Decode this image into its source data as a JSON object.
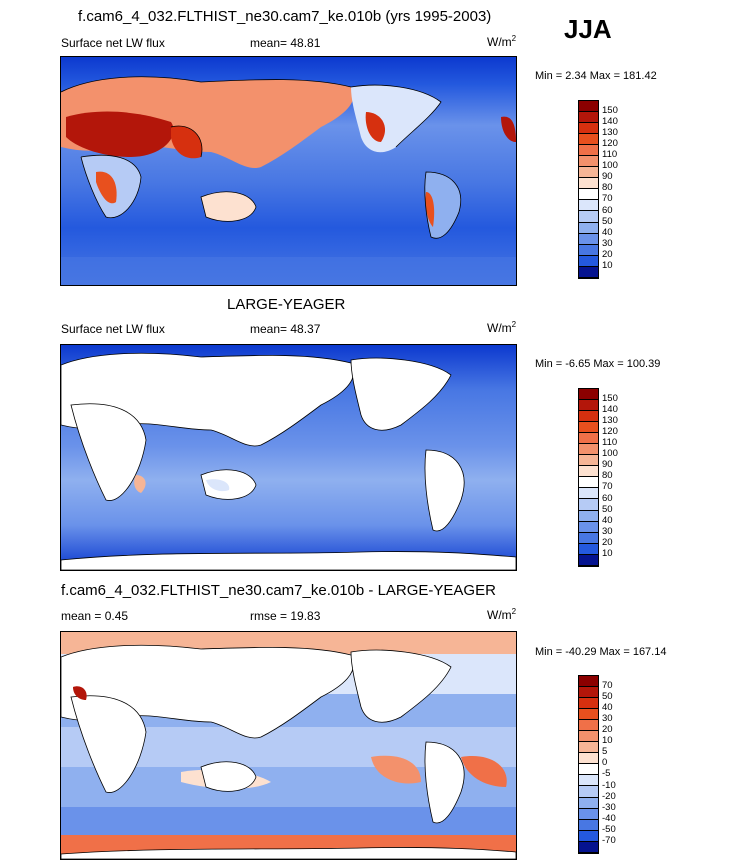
{
  "season": "JJA",
  "panels": [
    {
      "title": "f.cam6_4_032.FLTHIST_ne30.cam7_ke.010b (yrs 1995-2003)",
      "left_label": "Surface net LW flux",
      "center_label": "mean=  48.81",
      "units": "W/m",
      "units_sup": "2",
      "minmax": "Min =   2.34 Max = 181.42",
      "palette": "abs",
      "ocean_fill": true,
      "levels": [
        "150",
        "140",
        "130",
        "120",
        "110",
        "100",
        "90",
        "80",
        "70",
        "60",
        "50",
        "40",
        "30",
        "20",
        "10"
      ]
    },
    {
      "title": "LARGE-YEAGER",
      "left_label": "Surface net LW flux",
      "center_label": "mean=  48.37",
      "units": "W/m",
      "units_sup": "2",
      "minmax": "Min =  -6.65 Max = 100.39",
      "palette": "abs",
      "ocean_fill": false,
      "levels": [
        "150",
        "140",
        "130",
        "120",
        "110",
        "100",
        "90",
        "80",
        "70",
        "60",
        "50",
        "40",
        "30",
        "20",
        "10"
      ]
    },
    {
      "title": "f.cam6_4_032.FLTHIST_ne30.cam7_ke.010b - LARGE-YEAGER",
      "left_label": "mean =   0.45",
      "center_label": "rmse =  19.83",
      "units": "W/m",
      "units_sup": "2",
      "minmax": "Min = -40.29 Max = 167.14",
      "palette": "diff",
      "ocean_fill": false,
      "levels": [
        "70",
        "50",
        "40",
        "30",
        "20",
        "10",
        "5",
        "0",
        "-5",
        "-10",
        "-20",
        "-30",
        "-40",
        "-50",
        "-70"
      ]
    }
  ],
  "colors": {
    "abs": [
      "#8b0000",
      "#b3160a",
      "#d6300f",
      "#e8501e",
      "#f07048",
      "#f3916c",
      "#f6b596",
      "#fde1d0",
      "#ffffff",
      "#dbe6fb",
      "#b6cbf5",
      "#8fb0ef",
      "#6a92ea",
      "#4877e3",
      "#2459de",
      "#0c39cf",
      "#05138f"
    ],
    "diff": [
      "#8b0000",
      "#b3160a",
      "#d6300f",
      "#e8501e",
      "#f07048",
      "#f3916c",
      "#f6b596",
      "#fde1d0",
      "#ffffff",
      "#dbe6fb",
      "#b6cbf5",
      "#8fb0ef",
      "#6a92ea",
      "#4877e3",
      "#2459de",
      "#0c39cf",
      "#05138f"
    ]
  }
}
